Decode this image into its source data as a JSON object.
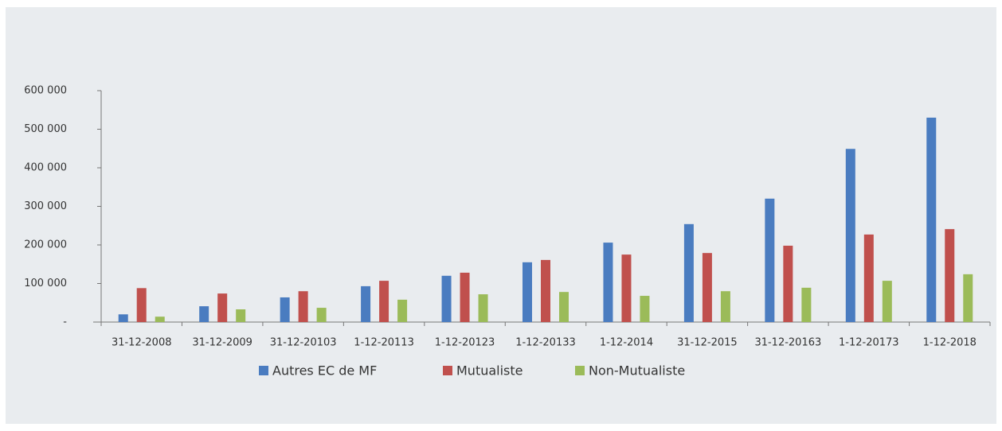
{
  "chart_data": {
    "type": "bar",
    "categories": [
      "31-12-2008",
      "31-12-2009",
      "31-12-20103",
      "1-12-20113",
      "1-12-20123",
      "1-12-20133",
      "1-12-2014",
      "31-12-2015",
      "31-12-20163",
      "1-12-20173",
      "1-12-2018"
    ],
    "series": [
      {
        "name": "Autres EC de MF",
        "color": "#4a7cc0",
        "values": [
          20000,
          41000,
          64000,
          93000,
          120000,
          155000,
          206000,
          254000,
          320000,
          449000,
          530000
        ]
      },
      {
        "name": "Mutualiste",
        "color": "#c0504d",
        "values": [
          88000,
          74000,
          80000,
          107000,
          128000,
          161000,
          175000,
          179000,
          198000,
          227000,
          241000
        ]
      },
      {
        "name": "Non-Mutualiste",
        "color": "#9bbb59",
        "values": [
          14000,
          33000,
          37000,
          58000,
          72000,
          78000,
          68000,
          80000,
          89000,
          107000,
          124000
        ]
      }
    ],
    "ylim": [
      0,
      600000
    ],
    "yticks": [
      {
        "value": 0,
        "label": "-"
      },
      {
        "value": 100000,
        "label": "100 000"
      },
      {
        "value": 200000,
        "label": "200 000"
      },
      {
        "value": 300000,
        "label": "300 000"
      },
      {
        "value": 400000,
        "label": "400 000"
      },
      {
        "value": 500000,
        "label": "500 000"
      },
      {
        "value": 600000,
        "label": "600 000"
      }
    ],
    "legend": "bottom"
  }
}
